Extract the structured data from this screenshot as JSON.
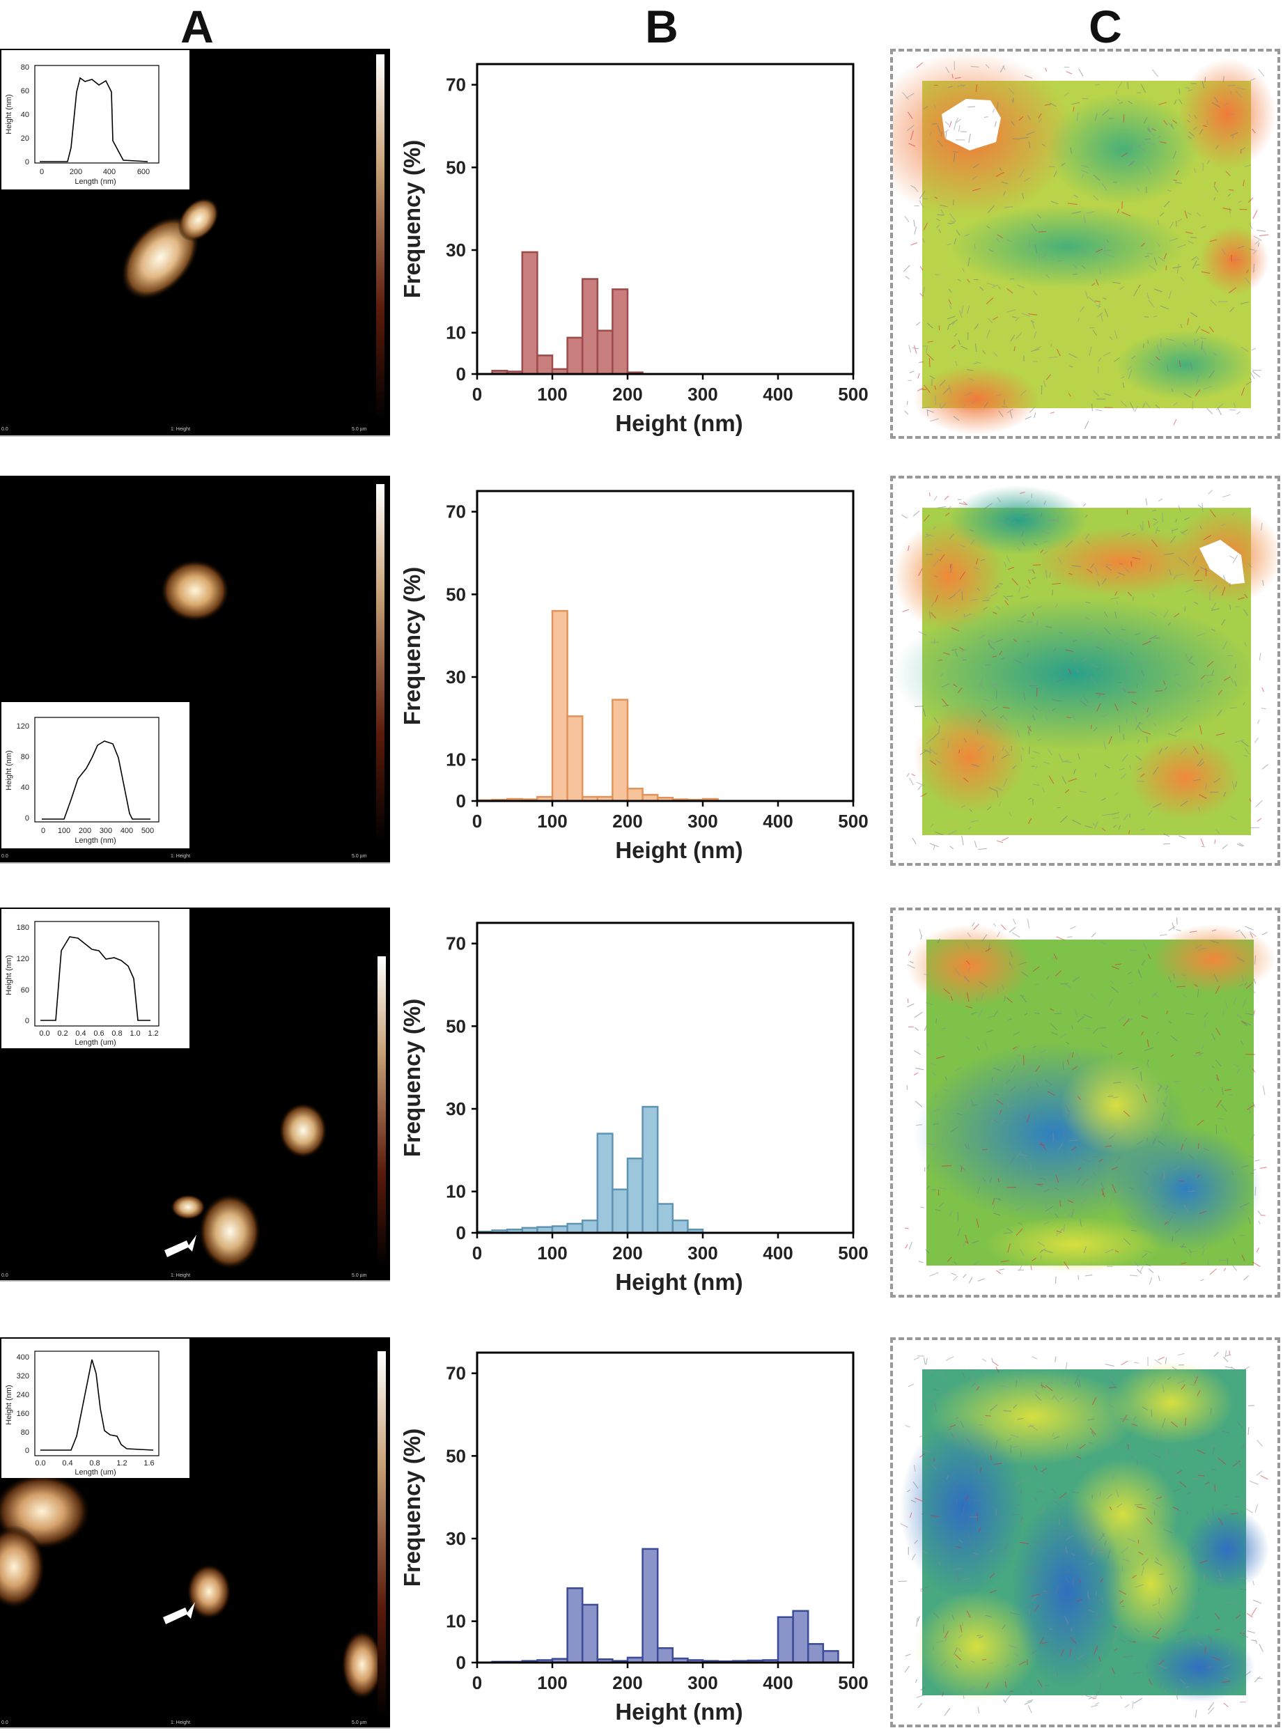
{
  "columns": [
    "A",
    "B",
    "C"
  ],
  "afm_footer": {
    "left": "0.0",
    "center": "1: Height",
    "right": "5.0 µm"
  },
  "chart_data": [
    {
      "type": "bar",
      "panel": "B row 1",
      "color": "#c97e7e",
      "edge": "#9c4a4a",
      "xlabel": "Height (nm)",
      "ylabel": "Frequency (%)",
      "xlim": [
        0,
        500
      ],
      "ylim": [
        0,
        75
      ],
      "xticks": [
        0,
        100,
        200,
        300,
        400,
        500
      ],
      "yticks": [
        0,
        10,
        30,
        50,
        70
      ],
      "bin_width": 20,
      "bin_starts": [
        20,
        40,
        60,
        80,
        100,
        120,
        140,
        160,
        180,
        200
      ],
      "values": [
        0.8,
        0.6,
        29.5,
        4.5,
        1.2,
        8.8,
        23,
        10.5,
        20.5,
        0.4
      ]
    },
    {
      "type": "bar",
      "panel": "B row 2",
      "color": "#f7c39c",
      "edge": "#e0935a",
      "xlabel": "Height (nm)",
      "ylabel": "Frequency (%)",
      "xlim": [
        0,
        500
      ],
      "ylim": [
        0,
        75
      ],
      "xticks": [
        0,
        100,
        200,
        300,
        400,
        500
      ],
      "yticks": [
        0,
        10,
        30,
        50,
        70
      ],
      "bin_width": 20,
      "bin_starts": [
        0,
        20,
        40,
        60,
        80,
        100,
        120,
        140,
        160,
        180,
        200,
        220,
        240,
        260,
        280,
        300
      ],
      "values": [
        0.2,
        0.3,
        0.5,
        0.4,
        1,
        46,
        20.5,
        1,
        1,
        24.5,
        3,
        1.5,
        0.8,
        0.4,
        0.3,
        0.5
      ]
    },
    {
      "type": "bar",
      "panel": "B row 3",
      "color": "#9cc6dc",
      "edge": "#5f93b3",
      "xlabel": "Height (nm)",
      "ylabel": "Frequency (%)",
      "xlim": [
        0,
        500
      ],
      "ylim": [
        0,
        75
      ],
      "xticks": [
        0,
        100,
        200,
        300,
        400,
        500
      ],
      "yticks": [
        0,
        10,
        30,
        50,
        70
      ],
      "bin_width": 20,
      "bin_starts": [
        0,
        20,
        40,
        60,
        80,
        100,
        120,
        140,
        160,
        180,
        200,
        220,
        240,
        260,
        280
      ],
      "values": [
        0.3,
        0.6,
        0.8,
        1.2,
        1.4,
        1.6,
        2.2,
        3,
        24,
        10.5,
        18,
        30.5,
        7,
        3,
        0.8
      ]
    },
    {
      "type": "bar",
      "panel": "B row 4",
      "color": "#8b94c8",
      "edge": "#3c4a9a",
      "xlabel": "Height (nm)",
      "ylabel": "Frequency (%)",
      "xlim": [
        0,
        500
      ],
      "ylim": [
        0,
        75
      ],
      "xticks": [
        0,
        100,
        200,
        300,
        400,
        500
      ],
      "yticks": [
        0,
        10,
        30,
        50,
        70
      ],
      "bin_width": 20,
      "bin_starts": [
        20,
        40,
        60,
        80,
        100,
        120,
        140,
        160,
        180,
        200,
        220,
        240,
        260,
        280,
        300,
        320,
        340,
        360,
        380,
        400,
        420,
        440,
        460
      ],
      "values": [
        0.2,
        0.2,
        0.4,
        0.6,
        0.9,
        18,
        14,
        0.8,
        0.4,
        1.2,
        27.5,
        3.5,
        1,
        0.6,
        0.4,
        0.3,
        0.4,
        0.5,
        0.6,
        11,
        12.5,
        4.5,
        2.8
      ]
    }
  ],
  "insets": [
    {
      "ylabel": "Height (nm)",
      "xlabel": "Length (nm)",
      "yticks": [
        "80",
        "60",
        "40",
        "20",
        "0"
      ],
      "xticks": [
        "0",
        "200",
        "400",
        "600"
      ]
    },
    {
      "ylabel": "Height (nm)",
      "xlabel": "Length (nm)",
      "yticks": [
        "120",
        "80",
        "40",
        "0"
      ],
      "xticks": [
        "0",
        "100",
        "200",
        "300",
        "400",
        "500"
      ]
    },
    {
      "ylabel": "Height (nm)",
      "xlabel": "Length (um)",
      "yticks": [
        "180",
        "120",
        "60",
        "0"
      ],
      "xticks": [
        "0.0",
        "0.2",
        "0.4",
        "0.6",
        "0.8",
        "1.0",
        "1.2"
      ]
    },
    {
      "ylabel": "Height (nm)",
      "xlabel": "Length (um)",
      "yticks": [
        "400",
        "320",
        "240",
        "160",
        "80",
        "0"
      ],
      "xticks": [
        "0.0",
        "0.4",
        "0.8",
        "1.2",
        "1.6"
      ]
    }
  ]
}
